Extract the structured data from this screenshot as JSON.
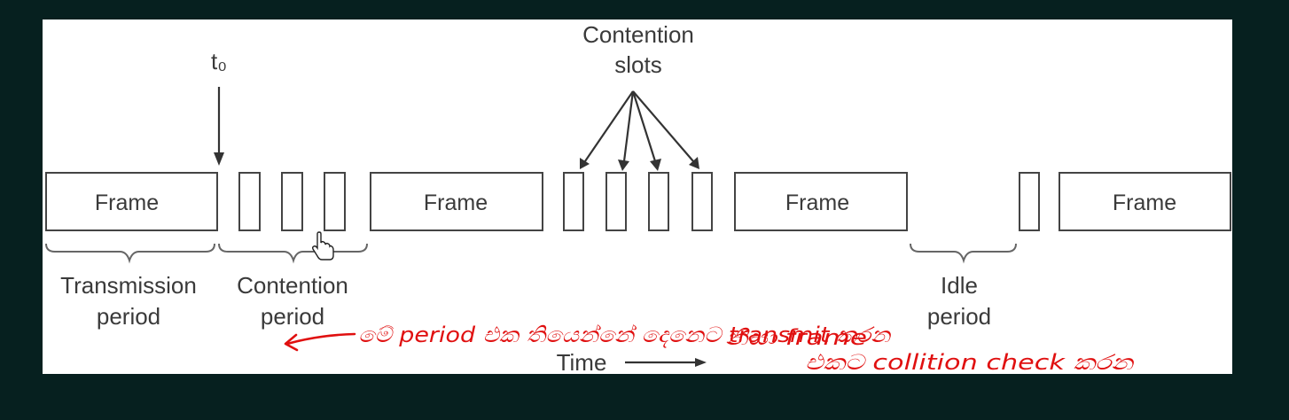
{
  "diagram": {
    "t0_label": "t₀",
    "contention_slots_label": [
      "Contention",
      "slots"
    ],
    "frame_label": "Frame",
    "transmission_period": [
      "Transmission",
      "period"
    ],
    "contention_period": [
      "Contention",
      "period"
    ],
    "idle_period": [
      "Idle",
      "period"
    ],
    "time_label": "Time"
  },
  "annotation": {
    "lines": [
      "මේ period එක තියෙන්නේ දෙනෙට transmit කරන",
      "නිසා frame",
      "එකට collition check කරන"
    ],
    "color": "#e01010"
  }
}
